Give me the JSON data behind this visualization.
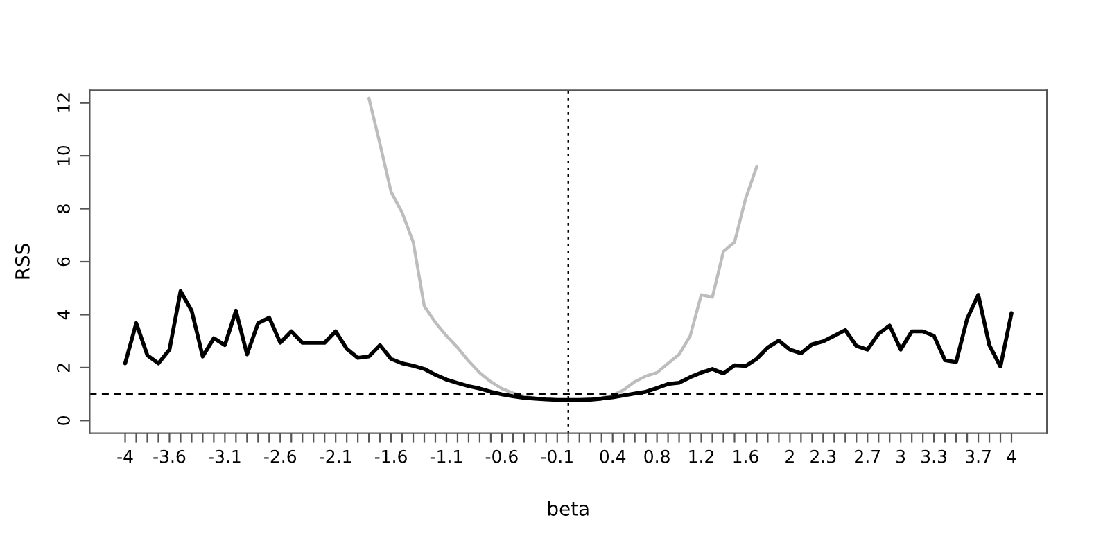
{
  "chart_data": {
    "type": "line",
    "xlabel": "beta",
    "ylabel": "RSS",
    "x": [
      -4.0,
      -3.9,
      -3.8,
      -3.7,
      -3.6,
      -3.5,
      -3.4,
      -3.3,
      -3.2,
      -3.1,
      -3.0,
      -2.9,
      -2.8,
      -2.7,
      -2.6,
      -2.5,
      -2.4,
      -2.3,
      -2.2,
      -2.1,
      -2.0,
      -1.9,
      -1.8,
      -1.7,
      -1.6,
      -1.5,
      -1.4,
      -1.3,
      -1.2,
      -1.1,
      -1.0,
      -0.9,
      -0.8,
      -0.7,
      -0.6,
      -0.5,
      -0.4,
      -0.3,
      -0.2,
      -0.1,
      0.0,
      0.1,
      0.2,
      0.3,
      0.4,
      0.5,
      0.6,
      0.7,
      0.8,
      0.9,
      1.0,
      1.1,
      1.2,
      1.3,
      1.4,
      1.5,
      1.6,
      1.7,
      1.8,
      1.9,
      2.0,
      2.1,
      2.2,
      2.3,
      2.4,
      2.5,
      2.6,
      2.7,
      2.8,
      2.9,
      3.0,
      3.1,
      3.2,
      3.3,
      3.4,
      3.5,
      3.6,
      3.7,
      3.8,
      3.9,
      4.0
    ],
    "series": [
      {
        "color": "#bdbdbd",
        "values": [
          null,
          null,
          null,
          null,
          null,
          null,
          null,
          null,
          null,
          null,
          null,
          null,
          null,
          null,
          null,
          null,
          null,
          null,
          null,
          null,
          null,
          null,
          12.18,
          10.45,
          8.64,
          7.86,
          6.74,
          4.32,
          3.71,
          3.2,
          2.76,
          2.25,
          1.81,
          1.47,
          1.21,
          1.04,
          0.92,
          0.85,
          0.8,
          0.78,
          0.78,
          0.78,
          0.81,
          0.86,
          0.95,
          1.16,
          1.47,
          1.68,
          1.81,
          2.16,
          2.5,
          3.2,
          4.75,
          4.66,
          6.39,
          6.74,
          8.38,
          9.59,
          null,
          null,
          null,
          null,
          null,
          null,
          null,
          null,
          null,
          null,
          null,
          null,
          null,
          null,
          null,
          null,
          null,
          null,
          null,
          null,
          null,
          null,
          null
        ]
      },
      {
        "color": "#000000",
        "values": [
          2.16,
          3.68,
          2.47,
          2.16,
          2.68,
          4.89,
          4.15,
          2.42,
          3.11,
          2.85,
          4.15,
          2.5,
          3.68,
          3.89,
          2.94,
          3.37,
          2.94,
          2.94,
          2.94,
          3.37,
          2.71,
          2.37,
          2.42,
          2.85,
          2.33,
          2.16,
          2.07,
          1.95,
          1.73,
          1.55,
          1.42,
          1.3,
          1.21,
          1.09,
          0.99,
          0.92,
          0.86,
          0.83,
          0.8,
          0.78,
          0.78,
          0.78,
          0.79,
          0.83,
          0.88,
          0.95,
          1.02,
          1.09,
          1.23,
          1.38,
          1.43,
          1.64,
          1.81,
          1.95,
          1.78,
          2.09,
          2.06,
          2.33,
          2.76,
          3.02,
          2.68,
          2.54,
          2.88,
          2.99,
          3.2,
          3.42,
          2.82,
          2.68,
          3.28,
          3.59,
          2.68,
          3.37,
          3.37,
          3.2,
          2.28,
          2.21,
          3.85,
          4.75,
          2.85,
          2.04,
          4.06
        ]
      }
    ],
    "xlim": [
      -4.32,
      4.32
    ],
    "ylim": [
      -0.48,
      12.48
    ],
    "yticks": [
      0,
      2,
      4,
      6,
      8,
      10,
      12
    ],
    "xticks": [
      -4,
      {
        "value": -3.9,
        "label": null
      },
      {
        "value": -3.8,
        "label": null
      },
      {
        "value": -3.7,
        "label": null
      },
      -3.6,
      {
        "value": -3.5,
        "label": null
      },
      {
        "value": -3.4,
        "label": null
      },
      {
        "value": -3.3,
        "label": null
      },
      {
        "value": -3.2,
        "label": null
      },
      -3.1,
      {
        "value": -3.0,
        "label": null
      },
      {
        "value": -2.9,
        "label": null
      },
      {
        "value": -2.8,
        "label": null
      },
      {
        "value": -2.7,
        "label": null
      },
      -2.6,
      {
        "value": -2.5,
        "label": null
      },
      {
        "value": -2.4,
        "label": null
      },
      {
        "value": -2.3,
        "label": null
      },
      {
        "value": -2.2,
        "label": null
      },
      -2.1,
      {
        "value": -2.0,
        "label": null
      },
      {
        "value": -1.9,
        "label": null
      },
      {
        "value": -1.8,
        "label": null
      },
      {
        "value": -1.7,
        "label": null
      },
      -1.6,
      {
        "value": -1.5,
        "label": null
      },
      {
        "value": -1.4,
        "label": null
      },
      {
        "value": -1.3,
        "label": null
      },
      {
        "value": -1.2,
        "label": null
      },
      -1.1,
      {
        "value": -1.0,
        "label": null
      },
      {
        "value": -0.9,
        "label": null
      },
      {
        "value": -0.8,
        "label": null
      },
      {
        "value": -0.7,
        "label": null
      },
      -0.6,
      {
        "value": -0.5,
        "label": null
      },
      {
        "value": -0.4,
        "label": null
      },
      {
        "value": -0.3,
        "label": null
      },
      {
        "value": -0.2,
        "label": null
      },
      -0.1,
      {
        "value": 0.0,
        "label": null
      },
      {
        "value": 0.1,
        "label": null
      },
      {
        "value": 0.2,
        "label": null
      },
      {
        "value": 0.3,
        "label": null
      },
      0.4,
      {
        "value": 0.5,
        "label": null
      },
      {
        "value": 0.6,
        "label": null
      },
      {
        "value": 0.7,
        "label": null
      },
      0.8,
      {
        "value": 0.9,
        "label": null
      },
      {
        "value": 1.0,
        "label": null
      },
      {
        "value": 1.1,
        "label": null
      },
      1.2,
      {
        "value": 1.3,
        "label": null
      },
      {
        "value": 1.4,
        "label": null
      },
      {
        "value": 1.5,
        "label": null
      },
      1.6,
      {
        "value": 1.7,
        "label": null
      },
      {
        "value": 1.8,
        "label": null
      },
      {
        "value": 1.9,
        "label": null
      },
      2,
      {
        "value": 2.1,
        "label": null
      },
      {
        "value": 2.2,
        "label": null
      },
      2.3,
      {
        "value": 2.4,
        "label": null
      },
      {
        "value": 2.5,
        "label": null
      },
      {
        "value": 2.6,
        "label": null
      },
      2.7,
      {
        "value": 2.8,
        "label": null
      },
      {
        "value": 2.9,
        "label": null
      },
      3,
      {
        "value": 3.1,
        "label": null
      },
      {
        "value": 3.2,
        "label": null
      },
      3.3,
      {
        "value": 3.4,
        "label": null
      },
      {
        "value": 3.5,
        "label": null
      },
      {
        "value": 3.6,
        "label": null
      },
      3.7,
      {
        "value": 3.8,
        "label": null
      },
      {
        "value": 3.9,
        "label": null
      },
      4
    ],
    "ref_lines": [
      {
        "axis": "y",
        "value": 1,
        "line_style": "dashed",
        "color": "#000000"
      },
      {
        "axis": "x",
        "value": 0,
        "line_style": "dotted",
        "color": "#000000"
      }
    ],
    "grid": false,
    "legend": false,
    "marker": "none",
    "line_style": "solid"
  }
}
